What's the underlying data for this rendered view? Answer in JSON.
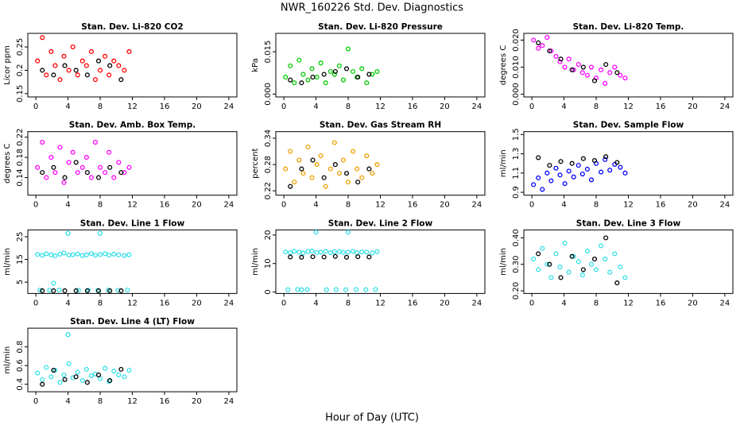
{
  "title": "NWR_160226 Std. Dev. Diagnostics",
  "x_label": "Hour of Day (UTC)",
  "chart_data": [
    {
      "type": "scatter",
      "title": "Stan. Dev. Li-820 CO2",
      "y_label": "Licor ppm",
      "xlim": [
        -1,
        25
      ],
      "xticks": [
        0,
        4,
        8,
        12,
        16,
        20,
        24
      ],
      "ylim": [
        0.143,
        0.279
      ],
      "yticks": [
        0.15,
        0.2,
        0.25
      ],
      "series": [
        {
          "color": "#ff0000",
          "x": [
            0.2,
            0.8,
            1.3,
            1.9,
            2.4,
            3.0,
            3.5,
            4.1,
            4.6,
            5.2,
            5.8,
            6.3,
            6.9,
            7.4,
            8.0,
            8.6,
            9.1,
            9.7,
            10.3,
            11.0,
            11.6
          ],
          "values": [
            0.22,
            0.27,
            0.19,
            0.24,
            0.21,
            0.18,
            0.23,
            0.2,
            0.25,
            0.19,
            0.22,
            0.21,
            0.24,
            0.18,
            0.2,
            0.23,
            0.19,
            0.22,
            0.21,
            0.2,
            0.24
          ]
        },
        {
          "color": "#000000",
          "x": [
            0.8,
            2.2,
            3.6,
            5.0,
            6.4,
            7.8,
            9.2,
            10.6
          ],
          "values": [
            0.2,
            0.19,
            0.21,
            0.2,
            0.19,
            0.22,
            0.21,
            0.18
          ]
        }
      ]
    },
    {
      "type": "scatter",
      "title": "Stan. Dev. Li-820 Pressure",
      "y_label": "kPa",
      "xlim": [
        -1,
        25
      ],
      "xticks": [
        0,
        4,
        8,
        12,
        16,
        20,
        24
      ],
      "ylim": [
        -0.001,
        0.0215
      ],
      "yticks": [
        {
          "value": 0,
          "label": "0.000"
        },
        0.015
      ],
      "series": [
        {
          "color": "#00cc00",
          "x": [
            0.2,
            0.8,
            1.3,
            1.9,
            2.4,
            3.0,
            3.5,
            4.1,
            4.6,
            5.2,
            5.8,
            6.3,
            6.9,
            7.4,
            8.0,
            8.6,
            9.1,
            9.7,
            10.3,
            11.0,
            11.6
          ],
          "values": [
            0.006,
            0.01,
            0.004,
            0.012,
            0.007,
            0.005,
            0.009,
            0.006,
            0.011,
            0.004,
            0.008,
            0.007,
            0.01,
            0.005,
            0.016,
            0.008,
            0.006,
            0.009,
            0.004,
            0.007,
            0.008
          ]
        },
        {
          "color": "#000000",
          "x": [
            0.8,
            2.2,
            3.6,
            5.0,
            6.4,
            7.8,
            9.2,
            10.6
          ],
          "values": [
            0.005,
            0.004,
            0.006,
            0.007,
            0.008,
            0.009,
            0.006,
            0.007
          ]
        }
      ]
    },
    {
      "type": "scatter",
      "title": "Stan. Dev. Li-820 Temp.",
      "y_label": "degrees C",
      "xlim": [
        -1,
        25
      ],
      "xticks": [
        0,
        4,
        8,
        12,
        16,
        20,
        24
      ],
      "ylim": [
        -0.001,
        0.0225
      ],
      "yticks": [
        {
          "value": 0,
          "label": "0.000"
        },
        {
          "value": 0.01,
          "label": "0.010"
        },
        {
          "value": 0.02,
          "label": "0.020"
        }
      ],
      "series": [
        {
          "color": "#ff00ff",
          "x": [
            0.2,
            0.8,
            1.3,
            1.9,
            2.4,
            3.0,
            3.5,
            4.1,
            4.6,
            5.2,
            5.8,
            6.3,
            6.9,
            7.4,
            8.0,
            8.6,
            9.1,
            9.7,
            10.3,
            11.0,
            11.6
          ],
          "values": [
            0.02,
            0.017,
            0.018,
            0.021,
            0.016,
            0.014,
            0.012,
            0.01,
            0.013,
            0.009,
            0.011,
            0.008,
            0.007,
            0.01,
            0.006,
            0.009,
            0.004,
            0.008,
            0.01,
            0.007,
            0.006
          ]
        },
        {
          "color": "#000000",
          "x": [
            0.8,
            2.2,
            3.6,
            5.0,
            6.4,
            7.8,
            9.2,
            10.6
          ],
          "values": [
            0.019,
            0.016,
            0.013,
            0.009,
            0.01,
            0.005,
            0.011,
            0.008
          ]
        }
      ]
    },
    {
      "type": "scatter",
      "title": "Stan. Dev. Amb. Box Temp.",
      "y_label": "degrees C",
      "xlim": [
        -1,
        25
      ],
      "xticks": [
        0,
        4,
        8,
        12,
        16,
        20,
        24
      ],
      "ylim": [
        0.105,
        0.231
      ],
      "yticks": [
        0.14,
        0.18,
        0.22
      ],
      "series": [
        {
          "color": "#ff00ff",
          "x": [
            0.2,
            0.8,
            1.3,
            1.9,
            2.4,
            3.0,
            3.5,
            4.1,
            4.6,
            5.2,
            5.8,
            6.3,
            6.9,
            7.4,
            8.0,
            8.6,
            9.1,
            9.7,
            10.3,
            11.0,
            11.6
          ],
          "values": [
            0.16,
            0.21,
            0.14,
            0.18,
            0.15,
            0.2,
            0.13,
            0.17,
            0.19,
            0.15,
            0.16,
            0.18,
            0.14,
            0.21,
            0.16,
            0.15,
            0.19,
            0.14,
            0.17,
            0.15,
            0.16
          ]
        },
        {
          "color": "#000000",
          "x": [
            0.8,
            2.2,
            3.6,
            5.0,
            6.4,
            7.8,
            9.2,
            10.6
          ],
          "values": [
            0.15,
            0.16,
            0.14,
            0.17,
            0.15,
            0.14,
            0.16,
            0.15
          ]
        }
      ]
    },
    {
      "type": "scatter",
      "title": "Stan. Dev. Gas Stream RH",
      "y_label": "percent",
      "xlim": [
        -1,
        25
      ],
      "xticks": [
        0,
        4,
        8,
        12,
        16,
        20,
        24
      ],
      "ylim": [
        0.21,
        0.355
      ],
      "yticks": [
        0.22,
        0.28,
        0.34
      ],
      "series": [
        {
          "color": "#f0a000",
          "x": [
            0.2,
            0.8,
            1.3,
            1.9,
            2.4,
            3.0,
            3.5,
            4.1,
            4.6,
            5.2,
            5.8,
            6.3,
            6.9,
            7.4,
            8.0,
            8.6,
            9.1,
            9.7,
            10.3,
            11.0,
            11.6
          ],
          "values": [
            0.27,
            0.31,
            0.24,
            0.29,
            0.26,
            0.32,
            0.25,
            0.28,
            0.3,
            0.23,
            0.27,
            0.33,
            0.26,
            0.29,
            0.24,
            0.31,
            0.27,
            0.25,
            0.3,
            0.26,
            0.28
          ]
        },
        {
          "color": "#000000",
          "x": [
            0.8,
            2.2,
            3.6,
            5.0,
            6.4,
            7.8,
            9.2,
            10.6
          ],
          "values": [
            0.23,
            0.27,
            0.29,
            0.25,
            0.28,
            0.26,
            0.24,
            0.27
          ]
        }
      ]
    },
    {
      "type": "scatter",
      "title": "Stan. Dev. Sample Flow",
      "y_label": "ml/min",
      "xlim": [
        -1,
        25
      ],
      "xticks": [
        0,
        4,
        8,
        12,
        16,
        20,
        24
      ],
      "ylim": [
        0.87,
        1.53
      ],
      "yticks": [
        0.9,
        1.1,
        1.3,
        1.5
      ],
      "series": [
        {
          "color": "#0000ff",
          "x": [
            0.2,
            0.8,
            1.3,
            1.9,
            2.4,
            3.0,
            3.5,
            4.1,
            4.6,
            5.2,
            5.8,
            6.3,
            6.9,
            7.4,
            8.0,
            8.6,
            9.1,
            9.7,
            10.3,
            11.0,
            11.6
          ],
          "values": [
            0.98,
            1.05,
            0.93,
            1.1,
            1.02,
            1.15,
            1.08,
            0.99,
            1.12,
            1.06,
            1.18,
            1.09,
            1.14,
            1.03,
            1.2,
            1.11,
            1.24,
            1.13,
            1.19,
            1.16,
            1.1
          ]
        },
        {
          "color": "#000000",
          "x": [
            0.8,
            2.2,
            3.6,
            5.0,
            6.4,
            7.8,
            9.2,
            10.6
          ],
          "values": [
            1.26,
            1.18,
            1.22,
            1.2,
            1.25,
            1.23,
            1.27,
            1.21
          ]
        }
      ]
    },
    {
      "type": "scatter",
      "title": "Stan. Dev. Line 1 Flow",
      "y_label": "ml/min",
      "xlim": [
        -1,
        25
      ],
      "xticks": [
        0,
        4,
        8,
        12,
        16,
        20,
        24
      ],
      "ylim": [
        0,
        28
      ],
      "yticks": [
        5,
        15,
        25
      ],
      "series": [
        {
          "color": "#33e0e8",
          "x": [
            0.2,
            0.8,
            1.3,
            1.9,
            2.4,
            3.0,
            3.5,
            4.1,
            4.6,
            5.2,
            5.8,
            6.3,
            6.9,
            7.4,
            8.0,
            8.6,
            9.1,
            9.7,
            10.3,
            11.0,
            11.6
          ],
          "values": [
            17.2,
            16.8,
            17.5,
            17.0,
            16.6,
            17.3,
            17.8,
            16.9,
            17.1,
            17.4,
            16.7,
            17.0,
            17.6,
            16.8,
            17.2,
            17.5,
            16.9,
            17.3,
            17.0,
            16.7,
            17.1
          ]
        },
        {
          "color": "#33e0e8",
          "x": [
            0.5,
            1.7,
            2.2,
            2.9,
            4.0,
            5.3,
            6.5,
            7.7,
            8.0,
            9.0,
            10.2,
            11.4
          ],
          "values": [
            1.5,
            1.4,
            4.5,
            1.5,
            26.5,
            1.4,
            1.5,
            1.4,
            26.5,
            1.5,
            1.4,
            1.5
          ]
        },
        {
          "color": "#000000",
          "x": [
            0.8,
            2.2,
            3.6,
            5.0,
            6.4,
            7.8,
            9.2,
            10.6
          ],
          "values": [
            1.2,
            1.2,
            1.2,
            1.2,
            1.2,
            1.2,
            1.2,
            1.2
          ]
        }
      ]
    },
    {
      "type": "scatter",
      "title": "Stan. Dev. Line 2 Flow",
      "y_label": "ml/min",
      "xlim": [
        -1,
        25
      ],
      "xticks": [
        0,
        4,
        8,
        12,
        16,
        20,
        24
      ],
      "ylim": [
        -0.5,
        21.8
      ],
      "yticks": [
        0,
        10,
        20
      ],
      "series": [
        {
          "color": "#33e0e8",
          "x": [
            0.2,
            0.8,
            1.3,
            1.9,
            2.4,
            3.0,
            3.5,
            4.1,
            4.6,
            5.2,
            5.8,
            6.3,
            6.9,
            7.4,
            8.0,
            8.6,
            9.1,
            9.7,
            10.3,
            11.0,
            11.6
          ],
          "values": [
            14.1,
            13.8,
            14.3,
            14.0,
            13.7,
            14.2,
            14.4,
            13.9,
            14.0,
            14.3,
            13.8,
            14.1,
            14.2,
            13.9,
            14.0,
            14.3,
            13.8,
            14.1,
            14.0,
            13.7,
            14.2
          ]
        },
        {
          "color": "#33e0e8",
          "x": [
            0.5,
            1.7,
            2.2,
            2.9,
            4.0,
            5.3,
            6.5,
            7.7,
            8.0,
            9.0,
            10.2,
            11.4
          ],
          "values": [
            0.8,
            0.9,
            0.8,
            0.9,
            21.0,
            0.8,
            0.9,
            0.8,
            21.0,
            0.9,
            0.8,
            0.9
          ]
        },
        {
          "color": "#000000",
          "x": [
            0.8,
            2.2,
            3.6,
            5.0,
            6.4,
            7.8,
            9.2,
            10.6
          ],
          "values": [
            12.3,
            12.2,
            12.4,
            12.3,
            12.5,
            12.2,
            12.4,
            12.3
          ]
        }
      ]
    },
    {
      "type": "scatter",
      "title": "Stan. Dev. Line 3 Flow",
      "y_label": "ml/min",
      "xlim": [
        -1,
        25
      ],
      "xticks": [
        0,
        4,
        8,
        12,
        16,
        20,
        24
      ],
      "ylim": [
        0.19,
        0.43
      ],
      "yticks": [
        {
          "value": 0.2,
          "label": "0.20"
        },
        {
          "value": 0.3,
          "label": "0.30"
        },
        {
          "value": 0.4,
          "label": "0.40"
        }
      ],
      "series": [
        {
          "color": "#33e0e8",
          "x": [
            0.2,
            0.8,
            1.3,
            1.9,
            2.4,
            3.0,
            3.5,
            4.1,
            4.6,
            5.2,
            5.8,
            6.3,
            6.9,
            7.4,
            8.0,
            8.6,
            9.1,
            9.7,
            10.3,
            11.0,
            11.6
          ],
          "values": [
            0.32,
            0.28,
            0.36,
            0.3,
            0.25,
            0.34,
            0.29,
            0.38,
            0.27,
            0.33,
            0.31,
            0.26,
            0.35,
            0.3,
            0.28,
            0.37,
            0.32,
            0.27,
            0.34,
            0.29,
            0.25
          ]
        },
        {
          "color": "#000000",
          "x": [
            0.8,
            2.2,
            3.6,
            5.0,
            6.4,
            7.8,
            9.2,
            10.6
          ],
          "values": [
            0.34,
            0.3,
            0.25,
            0.33,
            0.28,
            0.32,
            0.4,
            0.23
          ]
        }
      ]
    },
    {
      "type": "scatter",
      "title": "Stan. Dev. Line 4 (LT) Flow",
      "y_label": "ml/min",
      "xlim": [
        -1,
        25
      ],
      "xticks": [
        0,
        4,
        8,
        12,
        16,
        20,
        24
      ],
      "ylim": [
        0.32,
        1.0
      ],
      "yticks": [
        0.4,
        0.6,
        0.8
      ],
      "series": [
        {
          "color": "#33e0e8",
          "x": [
            0.2,
            0.8,
            1.3,
            1.9,
            2.4,
            3.0,
            3.5,
            4.1,
            4.6,
            5.2,
            5.8,
            6.3,
            6.9,
            7.4,
            8.0,
            8.6,
            9.1,
            9.7,
            10.3,
            11.0,
            11.6,
            4.0
          ],
          "values": [
            0.52,
            0.45,
            0.58,
            0.48,
            0.55,
            0.42,
            0.5,
            0.62,
            0.47,
            0.53,
            0.44,
            0.56,
            0.49,
            0.51,
            0.46,
            0.57,
            0.43,
            0.54,
            0.5,
            0.48,
            0.55,
            0.93
          ]
        },
        {
          "color": "#000000",
          "x": [
            0.8,
            2.2,
            3.6,
            5.0,
            6.4,
            7.8,
            9.2,
            10.6
          ],
          "values": [
            0.4,
            0.55,
            0.45,
            0.48,
            0.42,
            0.5,
            0.44,
            0.56
          ]
        }
      ]
    }
  ]
}
